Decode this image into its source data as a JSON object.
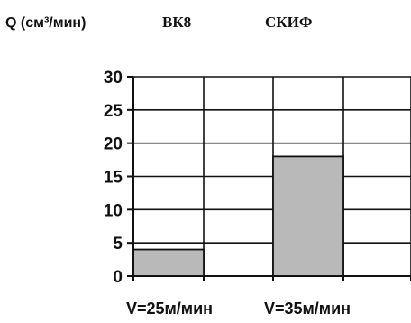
{
  "chart_data": {
    "type": "bar",
    "ylabel": "Q (см³/мин)",
    "categories": [
      "V=25м/мин",
      "V=35м/мин"
    ],
    "series": [
      {
        "name": "ВК8",
        "values": [
          4,
          18
        ]
      },
      {
        "name": "СКИФ",
        "values": [
          null,
          null
        ]
      }
    ],
    "ylim": [
      0,
      30
    ],
    "yticks": [
      0,
      5,
      10,
      15,
      20,
      25,
      30
    ],
    "grid": true,
    "legend_position": "top",
    "colors": {
      "bar_fill": "#b9b9b9",
      "bar_stroke": "#111111",
      "grid": "#111111",
      "axis": "#111111"
    }
  }
}
